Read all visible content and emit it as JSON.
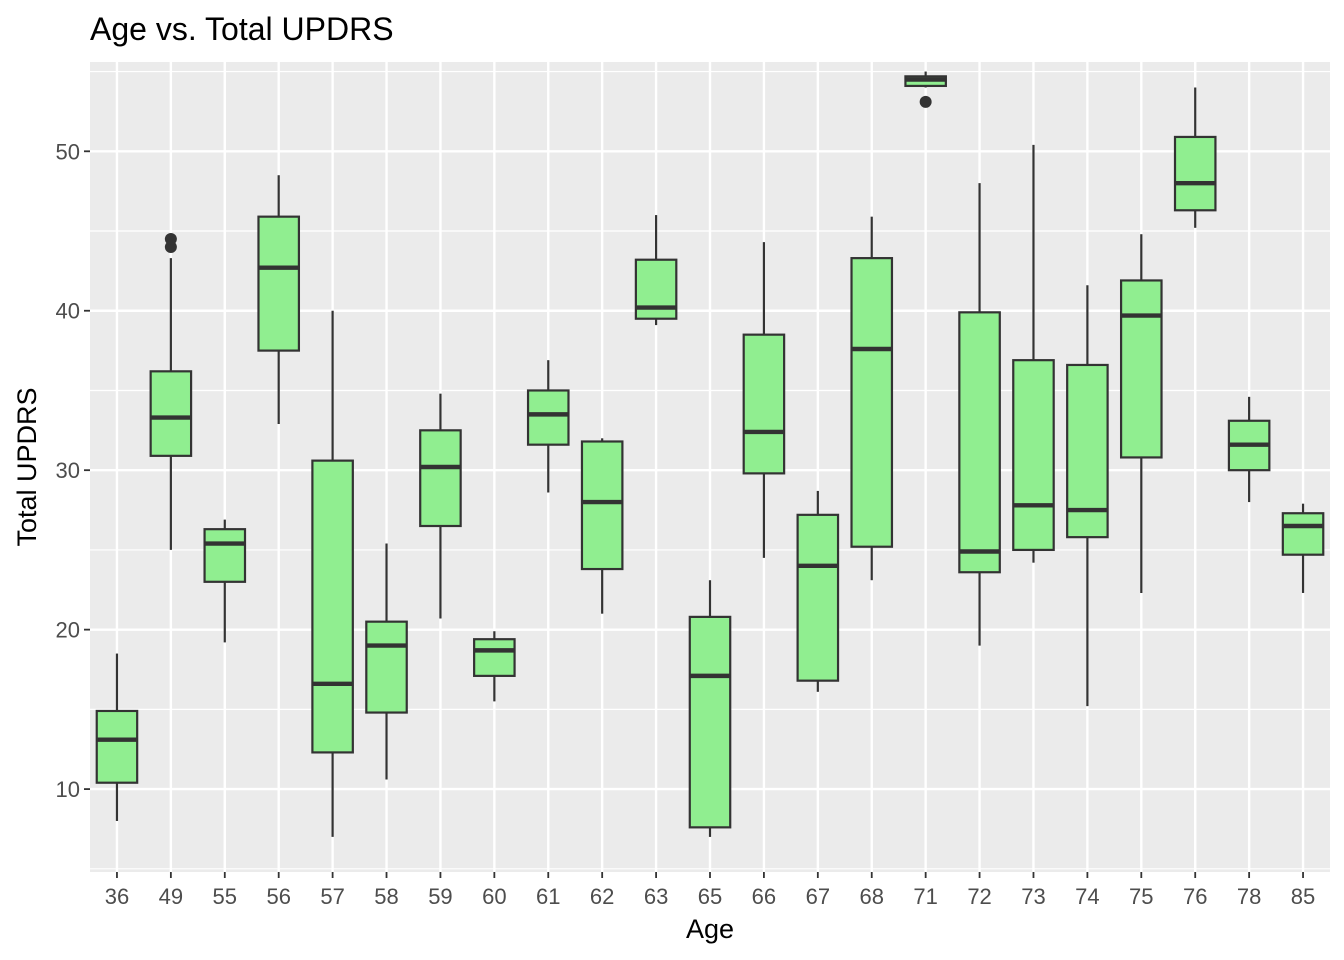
{
  "chart_data": {
    "type": "boxplot",
    "title": "Age vs. Total UPDRS",
    "xlabel": "Age",
    "ylabel": "Total UPDRS",
    "ylim": [
      4.8,
      55.6
    ],
    "yticks": [
      10,
      20,
      30,
      40,
      50
    ],
    "grid": true,
    "legend": "none",
    "colors": {
      "box_fill": "#90EE90",
      "box_line": "#333333",
      "panel_bg": "#EBEBEB",
      "grid": "#FFFFFF"
    },
    "categories": [
      "36",
      "49",
      "55",
      "56",
      "57",
      "58",
      "59",
      "60",
      "61",
      "62",
      "63",
      "65",
      "66",
      "67",
      "68",
      "71",
      "72",
      "73",
      "74",
      "75",
      "76",
      "78",
      "85"
    ],
    "boxes": [
      {
        "x": "36",
        "whisker_low": 8.0,
        "q1": 10.4,
        "median": 13.1,
        "q3": 14.9,
        "whisker_high": 18.5,
        "outliers": []
      },
      {
        "x": "49",
        "whisker_low": 25.0,
        "q1": 30.9,
        "median": 33.3,
        "q3": 36.2,
        "whisker_high": 43.3,
        "outliers": [
          44.0,
          44.5
        ]
      },
      {
        "x": "55",
        "whisker_low": 19.2,
        "q1": 23.0,
        "median": 25.4,
        "q3": 26.3,
        "whisker_high": 26.9,
        "outliers": []
      },
      {
        "x": "56",
        "whisker_low": 32.9,
        "q1": 37.5,
        "median": 42.7,
        "q3": 45.9,
        "whisker_high": 48.5,
        "outliers": []
      },
      {
        "x": "57",
        "whisker_low": 7.0,
        "q1": 12.3,
        "median": 16.6,
        "q3": 30.6,
        "whisker_high": 40.0,
        "outliers": []
      },
      {
        "x": "58",
        "whisker_low": 10.6,
        "q1": 14.8,
        "median": 19.0,
        "q3": 20.5,
        "whisker_high": 25.4,
        "outliers": []
      },
      {
        "x": "59",
        "whisker_low": 20.7,
        "q1": 26.5,
        "median": 30.2,
        "q3": 32.5,
        "whisker_high": 34.8,
        "outliers": []
      },
      {
        "x": "60",
        "whisker_low": 15.5,
        "q1": 17.1,
        "median": 18.7,
        "q3": 19.4,
        "whisker_high": 19.9,
        "outliers": []
      },
      {
        "x": "61",
        "whisker_low": 28.6,
        "q1": 31.6,
        "median": 33.5,
        "q3": 35.0,
        "whisker_high": 36.9,
        "outliers": []
      },
      {
        "x": "62",
        "whisker_low": 21.0,
        "q1": 23.8,
        "median": 28.0,
        "q3": 31.8,
        "whisker_high": 32.0,
        "outliers": []
      },
      {
        "x": "63",
        "whisker_low": 39.1,
        "q1": 39.5,
        "median": 40.2,
        "q3": 43.2,
        "whisker_high": 46.0,
        "outliers": []
      },
      {
        "x": "65",
        "whisker_low": 7.0,
        "q1": 7.6,
        "median": 17.1,
        "q3": 20.8,
        "whisker_high": 23.1,
        "outliers": []
      },
      {
        "x": "66",
        "whisker_low": 24.5,
        "q1": 29.8,
        "median": 32.4,
        "q3": 38.5,
        "whisker_high": 44.3,
        "outliers": []
      },
      {
        "x": "67",
        "whisker_low": 16.1,
        "q1": 16.8,
        "median": 24.0,
        "q3": 27.2,
        "whisker_high": 28.7,
        "outliers": []
      },
      {
        "x": "68",
        "whisker_low": 23.1,
        "q1": 25.2,
        "median": 37.6,
        "q3": 43.3,
        "whisker_high": 45.9,
        "outliers": []
      },
      {
        "x": "71",
        "whisker_low": 54.0,
        "q1": 54.1,
        "median": 54.5,
        "q3": 54.7,
        "whisker_high": 55.0,
        "outliers": [
          53.1
        ]
      },
      {
        "x": "72",
        "whisker_low": 19.0,
        "q1": 23.6,
        "median": 24.9,
        "q3": 39.9,
        "whisker_high": 48.0,
        "outliers": []
      },
      {
        "x": "73",
        "whisker_low": 24.2,
        "q1": 25.0,
        "median": 27.8,
        "q3": 36.9,
        "whisker_high": 50.4,
        "outliers": []
      },
      {
        "x": "74",
        "whisker_low": 15.2,
        "q1": 25.8,
        "median": 27.5,
        "q3": 36.6,
        "whisker_high": 41.6,
        "outliers": []
      },
      {
        "x": "75",
        "whisker_low": 22.3,
        "q1": 30.8,
        "median": 39.7,
        "q3": 41.9,
        "whisker_high": 44.8,
        "outliers": []
      },
      {
        "x": "76",
        "whisker_low": 45.2,
        "q1": 46.3,
        "median": 48.0,
        "q3": 50.9,
        "whisker_high": 54.0,
        "outliers": []
      },
      {
        "x": "78",
        "whisker_low": 28.0,
        "q1": 30.0,
        "median": 31.6,
        "q3": 33.1,
        "whisker_high": 34.6,
        "outliers": []
      },
      {
        "x": "85",
        "whisker_low": 22.3,
        "q1": 24.7,
        "median": 26.5,
        "q3": 27.3,
        "whisker_high": 27.9,
        "outliers": []
      }
    ]
  }
}
